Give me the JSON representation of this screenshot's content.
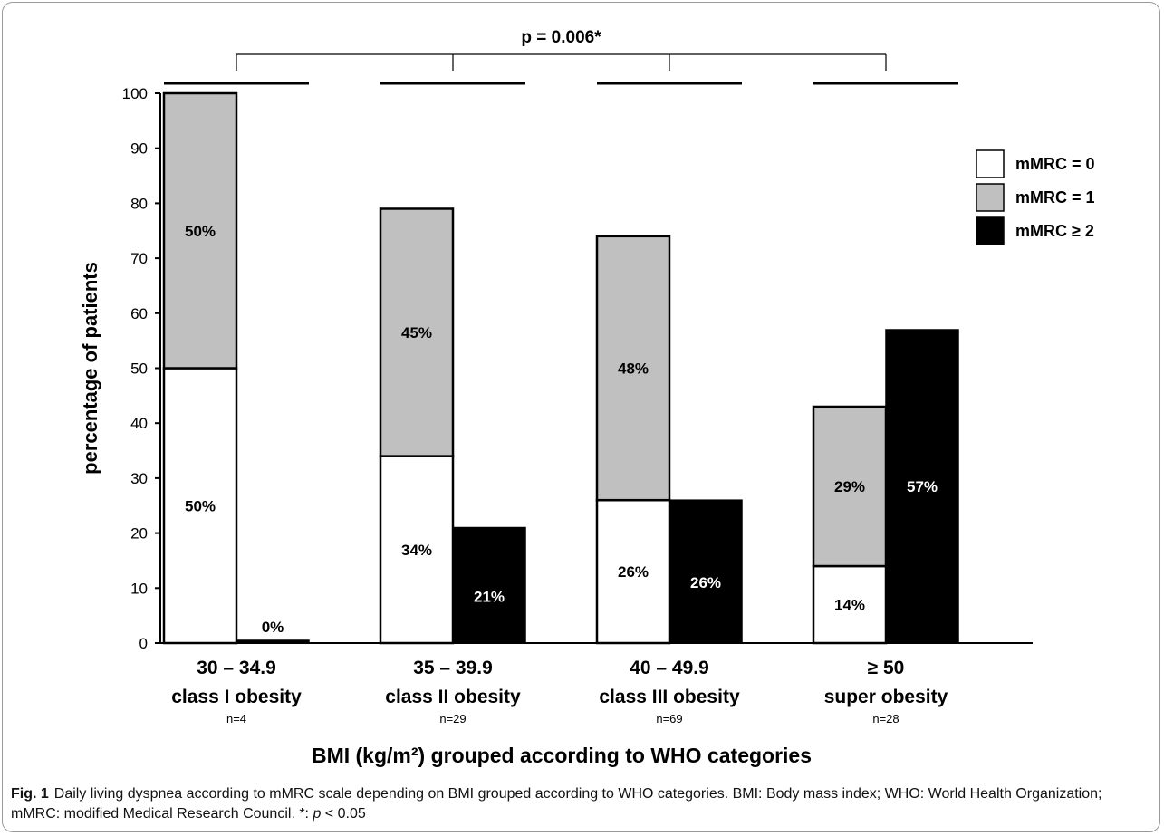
{
  "chart_data": {
    "type": "bar",
    "xlabel": "BMI (kg/m²) grouped according to WHO categories",
    "ylabel": "percentage of patients",
    "ylim": [
      0,
      100
    ],
    "yticks": [
      0,
      10,
      20,
      30,
      40,
      50,
      60,
      70,
      80,
      90,
      100
    ],
    "categories": [
      {
        "range": "30 – 34.9",
        "name": "class I obesity",
        "n": "n=4"
      },
      {
        "range": "35 – 39.9",
        "name": "class II obesity",
        "n": "n=29"
      },
      {
        "range": "40 – 49.9",
        "name": "class III obesity",
        "n": "n=69"
      },
      {
        "range": "≥ 50",
        "name": "super obesity",
        "n": "n=28"
      }
    ],
    "series": [
      {
        "name": "mMRC = 0",
        "color": "#ffffff",
        "values": [
          50,
          34,
          26,
          14
        ],
        "labels": [
          "50%",
          "34%",
          "26%",
          "14%"
        ]
      },
      {
        "name": "mMRC = 1",
        "color": "#c0c0c0",
        "values": [
          50,
          45,
          48,
          29
        ],
        "labels": [
          "50%",
          "45%",
          "48%",
          "29%"
        ]
      },
      {
        "name": "mMRC ≥ 2",
        "color": "#000000",
        "values": [
          0,
          21,
          26,
          57
        ],
        "labels": [
          "0%",
          "21%",
          "26%",
          "57%"
        ]
      }
    ],
    "stacking": "mMRC = 0 and mMRC = 1 stacked in first bar; mMRC ≥ 2 separate second bar",
    "legend_position": "right",
    "significance": "p = 0.006*",
    "grid": false
  },
  "caption": {
    "lead": "Fig. 1",
    "text_before": "Daily living dyspnea according to mMRC scale depending on BMI grouped according to WHO categories. BMI: Body mass index; WHO: World Health Organization; mMRC: modified Medical Research Council. *: ",
    "italic": "p",
    "text_after": " < 0.05"
  }
}
